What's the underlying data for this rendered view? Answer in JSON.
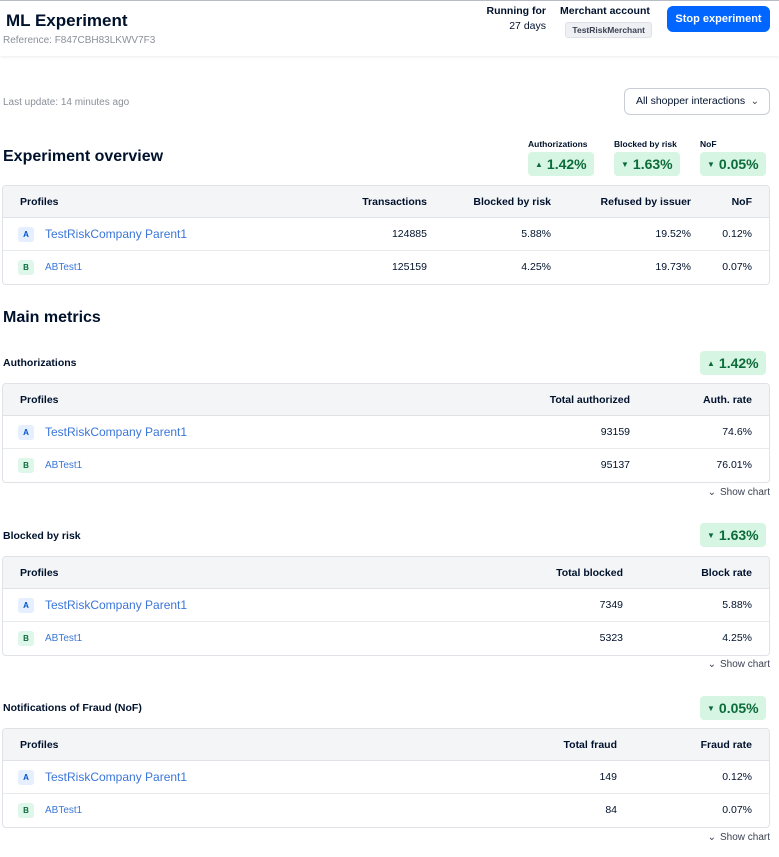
{
  "header": {
    "title": "ML Experiment",
    "reference": "Reference: F847CBH83LKWV7F3",
    "running_label": "Running for",
    "running_value": "27 days",
    "merchant_label": "Merchant account",
    "merchant_value": "TestRiskMerchant",
    "stop_button": "Stop experiment"
  },
  "toolbar": {
    "last_update": "Last update: 14 minutes ago",
    "filter_value": "All shopper interactions"
  },
  "overview": {
    "title": "Experiment overview",
    "kpis": [
      {
        "label": "Authorizations",
        "value": "1.42%",
        "direction": "up"
      },
      {
        "label": "Blocked by risk",
        "value": "1.63%",
        "direction": "down"
      },
      {
        "label": "NoF",
        "value": "0.05%",
        "direction": "down"
      }
    ],
    "columns": [
      "Profiles",
      "Transactions",
      "Blocked by risk",
      "Refused by issuer",
      "NoF"
    ],
    "rows": [
      {
        "tag": "A",
        "name": "TestRiskCompany Parent1",
        "transactions": "124885",
        "blocked": "5.88%",
        "refused": "19.52%",
        "nof": "0.12%"
      },
      {
        "tag": "B",
        "name": "ABTest1",
        "transactions": "125159",
        "blocked": "4.25%",
        "refused": "19.73%",
        "nof": "0.07%"
      }
    ]
  },
  "main_metrics": {
    "title": "Main metrics",
    "show_chart": "Show chart",
    "sections": [
      {
        "title": "Authorizations",
        "badge": "1.42%",
        "direction": "up",
        "columns": [
          "Profiles",
          "Total authorized",
          "Auth. rate"
        ],
        "rows": [
          {
            "tag": "A",
            "name": "TestRiskCompany Parent1",
            "total": "93159",
            "rate": "74.6%"
          },
          {
            "tag": "B",
            "name": "ABTest1",
            "total": "95137",
            "rate": "76.01%"
          }
        ]
      },
      {
        "title": "Blocked by risk",
        "badge": "1.63%",
        "direction": "down",
        "columns": [
          "Profiles",
          "Total blocked",
          "Block rate"
        ],
        "rows": [
          {
            "tag": "A",
            "name": "TestRiskCompany Parent1",
            "total": "7349",
            "rate": "5.88%"
          },
          {
            "tag": "B",
            "name": "ABTest1",
            "total": "5323",
            "rate": "4.25%"
          }
        ]
      },
      {
        "title": "Notifications of Fraud (NoF)",
        "badge": "0.05%",
        "direction": "down",
        "columns": [
          "Profiles",
          "Total fraud",
          "Fraud rate"
        ],
        "rows": [
          {
            "tag": "A",
            "name": "TestRiskCompany Parent1",
            "total": "149",
            "rate": "0.12%"
          },
          {
            "tag": "B",
            "name": "ABTest1",
            "total": "84",
            "rate": "0.07%"
          }
        ]
      }
    ]
  },
  "colors": {
    "primary": "#0066ff",
    "badge_bg": "#d7f5e3",
    "badge_text": "#0c6b3a",
    "link": "#3b76d9"
  }
}
